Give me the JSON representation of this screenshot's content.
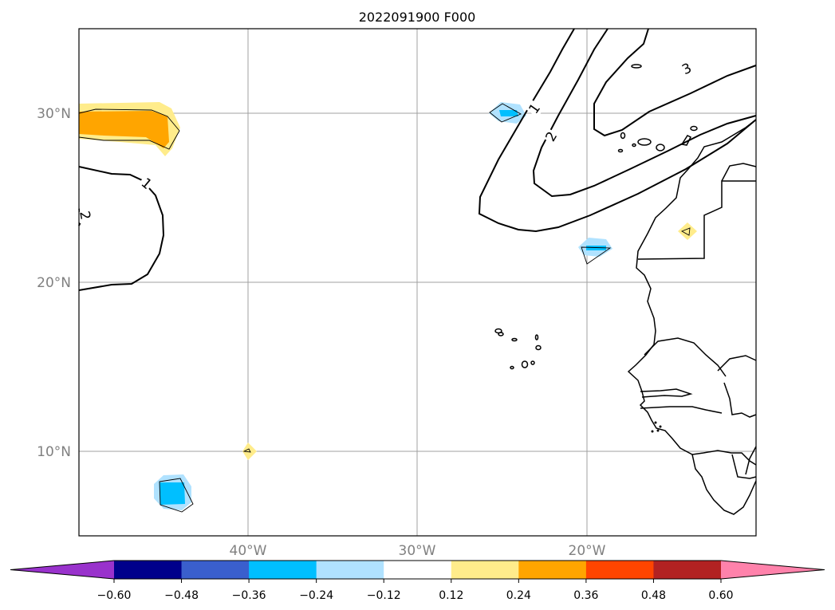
{
  "title": "2022091900 F000",
  "lat_labels": [
    "30°N",
    "20°N",
    "10°N"
  ],
  "lon_labels": [
    "40°W",
    "30°W",
    "20°W"
  ],
  "contour_labels": [
    "1",
    "2",
    "3",
    "1",
    "2"
  ],
  "colorbar": {
    "colors": [
      "#9932CC",
      "#00008B",
      "#3A5FCD",
      "#00BFFF",
      "#B0E2FF",
      "#FFFFFF",
      "#FFEC8B",
      "#FFA500",
      "#FF4500",
      "#B22222",
      "#FF82AB"
    ],
    "ticks": [
      "−0.60",
      "−0.48",
      "−0.36",
      "−0.24",
      "−0.12",
      "0.12",
      "0.24",
      "0.36",
      "0.48",
      "0.60"
    ]
  }
}
